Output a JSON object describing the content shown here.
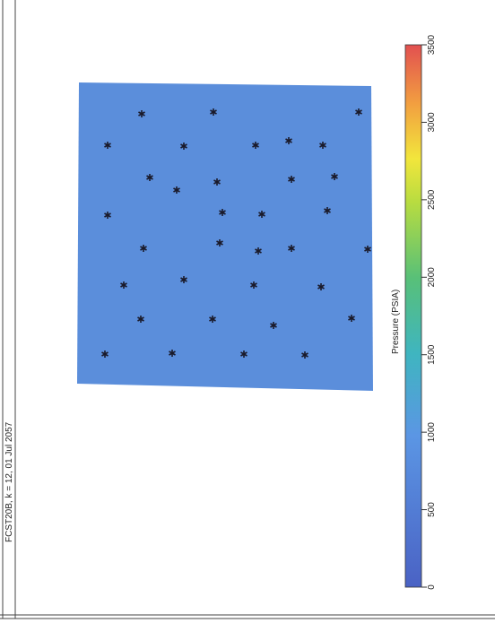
{
  "header": {
    "title": "FCST20B, k = 12, 01 Jul 2057"
  },
  "colorbar": {
    "label": "Pressure (PSIA)",
    "range": [
      0,
      3500
    ],
    "ticks": [
      0,
      500,
      1000,
      1500,
      2000,
      2500,
      3000,
      3500
    ]
  }
}
